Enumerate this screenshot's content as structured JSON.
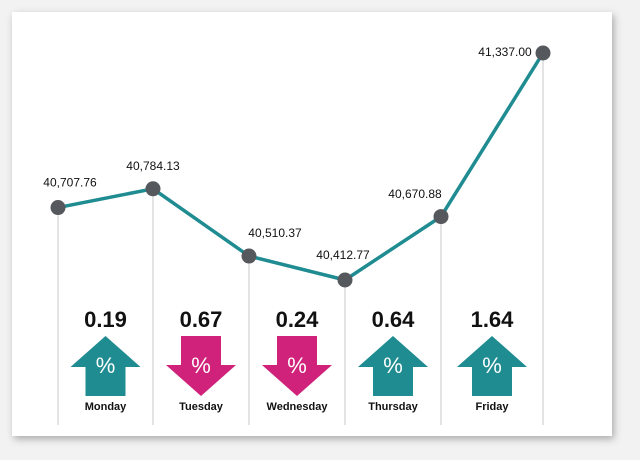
{
  "chart_data": {
    "type": "line",
    "values": [
      40707.76,
      40784.13,
      40510.37,
      40412.77,
      40670.88,
      41337.0
    ],
    "value_labels": [
      "40,707.76",
      "40,784.13",
      "40,510.37",
      "40,412.77",
      "40,670.88",
      "41,337.00"
    ],
    "color": "#1f8c92",
    "marker_color": "#55585c",
    "changes": {
      "categories": [
        "Monday",
        "Tuesday",
        "Wednesday",
        "Thursday",
        "Friday"
      ],
      "values": [
        0.19,
        0.67,
        0.24,
        0.64,
        1.64
      ],
      "symbol": "%",
      "up_color": "#1f8c92",
      "down_color": "#d0227a"
    }
  }
}
